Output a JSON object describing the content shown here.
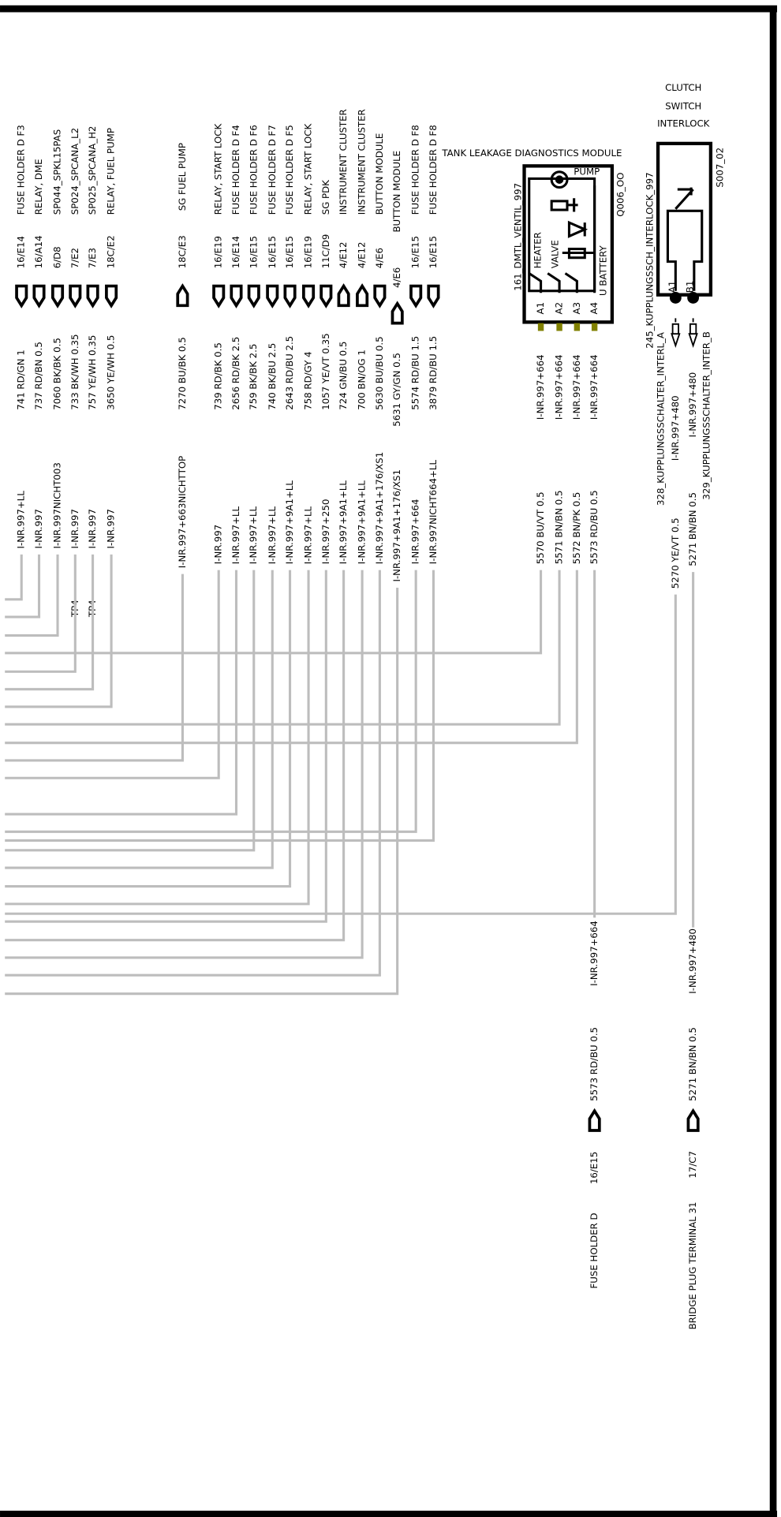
{
  "columns": [
    {
      "device": "FUSE HOLDER D F3",
      "pin": "16/E14",
      "wire": "741 RD/GN 1",
      "code": "I-NR.997+LL"
    },
    {
      "device": "RELAY, DME",
      "pin": "16/A14",
      "wire": "737 RD/BN 0.5",
      "code": "I-NR.997"
    },
    {
      "device": "SP044_SPKL15PAS",
      "pin": "6/D8",
      "wire": "7060 BK/BK 0.5",
      "code": "I-NR.997NICHT003"
    },
    {
      "device": "SP024_SPCANA_L2",
      "pin": "7/E2",
      "wire": "733 BK/WH 0.35",
      "code": "I-NR.997",
      "note": "TP4"
    },
    {
      "device": "SP025_SPCANA_H2",
      "pin": "7/E3",
      "wire": "757 YE/WH 0.35",
      "code": "I-NR.997",
      "note": "TP4"
    },
    {
      "device": "RELAY,   FUEL PUMP",
      "pin": "18C/E2",
      "wire": "3650 YE/WH 0.5",
      "code": "I-NR.997"
    },
    {
      "device": "SG  FUEL PUMP",
      "pin": "18C/E3",
      "wire": "7270 BU/BK 0.5",
      "code": "I-NR.997+663NICHTTOP"
    },
    {
      "device": "RELAY,  START LOCK",
      "pin": "16/E19",
      "wire": "739 RD/BK 0.5",
      "code": "I-NR.997"
    },
    {
      "device": "FUSE HOLDER D F4",
      "pin": "16/E14",
      "wire": "2656 RD/BK 2.5",
      "code": "I-NR.997+LL"
    },
    {
      "device": "FUSE HOLDER D F6",
      "pin": "16/E15",
      "wire": "759 BK/BK 2.5",
      "code": "I-NR.997+LL"
    },
    {
      "device": "FUSE HOLDER D F7",
      "pin": "16/E15",
      "wire": "740 BK/BU 2.5",
      "code": "I-NR.997+LL"
    },
    {
      "device": "FUSE HOLDER D F5",
      "pin": "16/E15",
      "wire": "2643 RD/BU 2.5",
      "code": "I-NR.997+9A1+LL"
    },
    {
      "device": "RELAY,      START LOCK",
      "pin": "16/E19",
      "wire": "758 RD/GY 4",
      "code": "I-NR.997+LL"
    },
    {
      "device": "SG     PDK",
      "pin": "11C/D9",
      "wire": "1057 YE/VT 0.35",
      "code": "I-NR.997+250"
    },
    {
      "device": "INSTRUMENT CLUSTER",
      "pin": "4/E12",
      "wire": "724 GN/BU 0.5",
      "code": "I-NR.997+9A1+LL"
    },
    {
      "device": "INSTRUMENT CLUSTER",
      "pin": "4/E12",
      "wire": "700 BN/OG 1",
      "code": "I-NR.997+9A1+LL"
    },
    {
      "device": "BUTTON MODULE",
      "pin": "4/E6",
      "wire": "5630 BU/BU 0.5",
      "code": "I-NR.997+9A1+176/XS1"
    },
    {
      "device": "BUTTON MODULE",
      "pin": "4/E6",
      "wire": "5631 GY/GN 0.5",
      "code": "I-NR.997+9A1+176/XS1"
    },
    {
      "device": "FUSE HOLDER D  F8",
      "pin": "16/E15",
      "wire": "5574 RD/BU 1.5",
      "code": "I-NR.997+664"
    },
    {
      "device": "FUSE HOLDER D  F8",
      "pin": "16/E15",
      "wire": "3879 RD/BU 1.5",
      "code": "I-NR.997NICHT664+LL"
    }
  ],
  "module": {
    "title": "TANK LEAKAGE DIAGNOSTICS MODULE",
    "id": "Q006_OO",
    "name": "161_DMTL_VENTIL_997",
    "parts": [
      "PUMP",
      "HEATER",
      "VALVE",
      "U BATTERY"
    ],
    "pins": [
      {
        "pin": "A1",
        "code": "I-NR.997+664",
        "wire": "5570 BU/VT 0.5"
      },
      {
        "pin": "A2",
        "code": "I-NR.997+664",
        "wire": "5571 BN/BN 0.5"
      },
      {
        "pin": "A3",
        "code": "I-NR.997+664",
        "wire": "5572 BN/PK 0.5"
      },
      {
        "pin": "A4",
        "code": "I-NR.997+664",
        "wire": "5573 RD/BU 0.5"
      }
    ],
    "lower": {
      "code": "I-NR.997+664",
      "wire": "5573 RD/BU 0.5",
      "pin": "16/E15",
      "device": "FUSE HOLDER D"
    }
  },
  "switch": {
    "title": [
      "CLUTCH",
      "SWITCH",
      "INTERLOCK"
    ],
    "id": "S007_02",
    "name": "245_KUPPLUNGSSCH_INTERLOCK_997",
    "pins": [
      {
        "pin": "A1",
        "label": "328_KUPPLUNGSSCHALTER_INTERL_A",
        "code": "I-NR.997+480",
        "wire": "5270 YE/VT 0.5"
      },
      {
        "pin": "B1",
        "label": "329_KUPPLUNGSSCHALTER_INTER_B",
        "code": "I-NR.997+480",
        "wire": "5271 BN/BN 0.5"
      }
    ],
    "lower": {
      "code": "I-NR.997+480",
      "wire": "5271 BN/BN 0.5",
      "pin": "17/C7",
      "device": "BRIDGE PLUG  TERMINAL 31"
    }
  }
}
